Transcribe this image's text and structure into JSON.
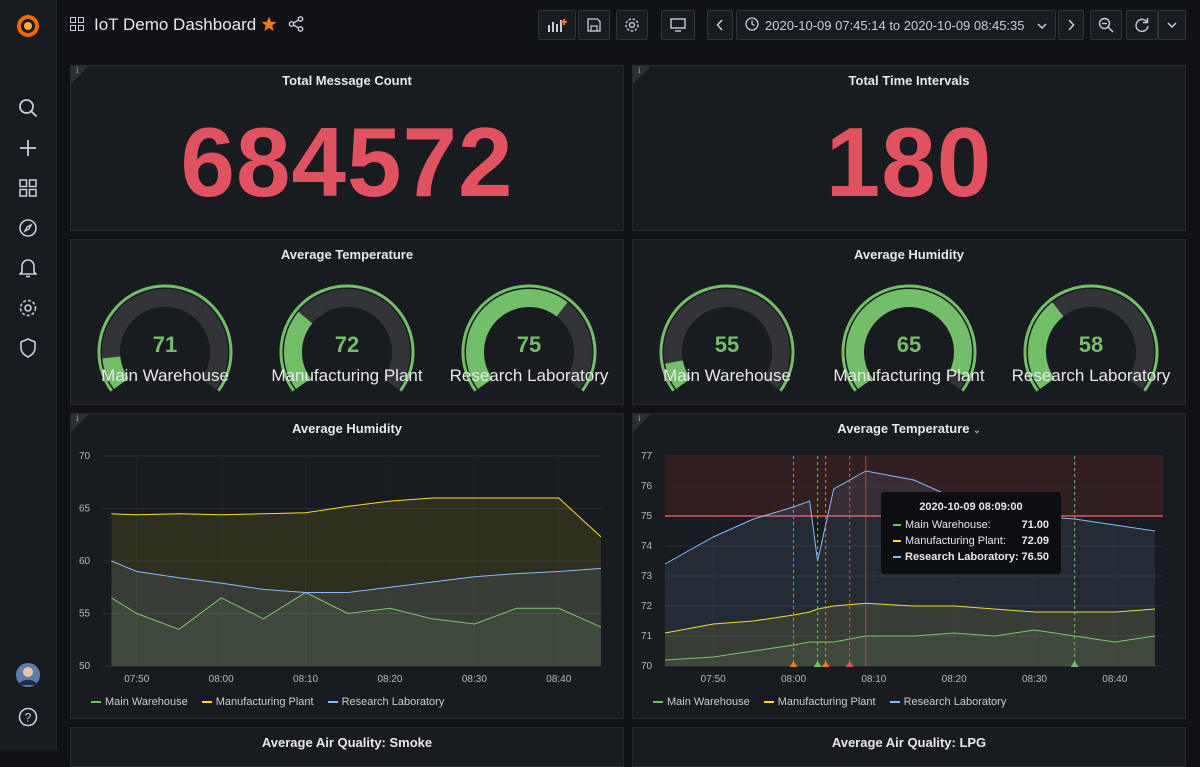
{
  "dashboard": {
    "title": "IoT Demo Dashboard",
    "time_range": "2020-10-09 07:45:14 to 2020-10-09 08:45:35"
  },
  "colors": {
    "red": "#e0525f",
    "green": "#73bf69",
    "yellow": "#fade2a",
    "blue": "#8ab8ff",
    "star": "#eb7b18"
  },
  "sidebar": {
    "icons": [
      "grafana-logo-icon",
      "search-icon",
      "plus-icon",
      "dashboards-icon",
      "explore-icon",
      "alerting-icon",
      "configuration-icon",
      "shield-icon",
      "user-avatar",
      "help-icon"
    ]
  },
  "panels": {
    "total_messages": {
      "title": "Total Message Count",
      "value": "684572"
    },
    "total_intervals": {
      "title": "Total Time Intervals",
      "value": "180"
    },
    "avg_temp_gauge": {
      "title": "Average Temperature",
      "gauges": [
        {
          "label": "Main Warehouse",
          "value": "71",
          "fraction": 0.12
        },
        {
          "label": "Manufacturing Plant",
          "value": "72",
          "fraction": 0.3
        },
        {
          "label": "Research Laboratory",
          "value": "75",
          "fraction": 0.65
        }
      ]
    },
    "avg_hum_gauge": {
      "title": "Average Humidity",
      "gauges": [
        {
          "label": "Main Warehouse",
          "value": "55",
          "fraction": 0.1
        },
        {
          "label": "Manufacturing Plant",
          "value": "65",
          "fraction": 0.95
        },
        {
          "label": "Research Laboratory",
          "value": "58",
          "fraction": 0.35
        }
      ]
    },
    "hum_chart_title": "Average Humidity",
    "temp_chart_title": "Average Temperature",
    "smoke_title": "Average Air Quality: Smoke",
    "lpg_title": "Average Air Quality: LPG"
  },
  "tooltip": {
    "time": "2020-10-09 08:09:00",
    "rows": [
      {
        "name": "Main Warehouse:",
        "value": "71.00",
        "color": "#73bf69"
      },
      {
        "name": "Manufacturing Plant:",
        "value": "72.09",
        "color": "#fade2a"
      },
      {
        "name": "Research Laboratory:",
        "value": "76.50",
        "color": "#8ab8ff"
      }
    ]
  },
  "chart_data": [
    {
      "type": "area",
      "title": "Average Humidity",
      "x": [
        "07:47",
        "07:50",
        "07:55",
        "08:00",
        "08:05",
        "08:10",
        "08:15",
        "08:20",
        "08:25",
        "08:30",
        "08:35",
        "08:40",
        "08:45"
      ],
      "xticks": [
        "07:50",
        "08:00",
        "08:10",
        "08:20",
        "08:30",
        "08:40"
      ],
      "yticks": [
        "50",
        "55",
        "60",
        "65",
        "70"
      ],
      "ylim": [
        50,
        70
      ],
      "series": [
        {
          "name": "Main Warehouse",
          "color": "#73bf69",
          "values": [
            56.5,
            55,
            53.5,
            56.5,
            54.5,
            57,
            55,
            55.5,
            54.5,
            54,
            55.5,
            55.5,
            53.7
          ]
        },
        {
          "name": "Manufacturing Plant",
          "color": "#fade2a",
          "values": [
            64.5,
            64.4,
            64.5,
            64.4,
            64.5,
            64.6,
            65.2,
            65.7,
            66,
            66,
            66,
            66,
            62.3
          ]
        },
        {
          "name": "Research Laboratory",
          "color": "#8ab8ff",
          "values": [
            60,
            59,
            58.4,
            57.9,
            57.3,
            57,
            57,
            57.5,
            58,
            58.5,
            58.8,
            59,
            59.3
          ]
        }
      ]
    },
    {
      "type": "area",
      "title": "Average Temperature",
      "x": [
        "07:44",
        "07:50",
        "07:55",
        "08:00",
        "08:02",
        "08:03",
        "08:05",
        "08:09",
        "08:15",
        "08:20",
        "08:25",
        "08:30",
        "08:35",
        "08:40",
        "08:45"
      ],
      "xticks": [
        "07:50",
        "08:00",
        "08:10",
        "08:20",
        "08:30",
        "08:40"
      ],
      "yticks": [
        "70",
        "71",
        "72",
        "73",
        "74",
        "75",
        "76",
        "77"
      ],
      "ylim": [
        70,
        77
      ],
      "threshold": 75,
      "series": [
        {
          "name": "Main Warehouse",
          "color": "#73bf69",
          "values": [
            70.2,
            70.3,
            70.5,
            70.7,
            70.8,
            70.8,
            70.8,
            71.0,
            71.0,
            71.1,
            71.0,
            71.2,
            71.0,
            70.8,
            71.0
          ]
        },
        {
          "name": "Manufacturing Plant",
          "color": "#fade2a",
          "values": [
            71.1,
            71.4,
            71.5,
            71.7,
            71.8,
            71.9,
            72.0,
            72.09,
            72.0,
            72.0,
            71.9,
            71.8,
            71.8,
            71.8,
            71.9
          ]
        },
        {
          "name": "Research Laboratory",
          "color": "#8ab8ff",
          "values": [
            73.4,
            74.3,
            74.9,
            75.3,
            75.5,
            73.5,
            75.9,
            76.5,
            76.2,
            75.6,
            75.3,
            75.0,
            74.9,
            74.7,
            74.5
          ]
        }
      ]
    }
  ]
}
